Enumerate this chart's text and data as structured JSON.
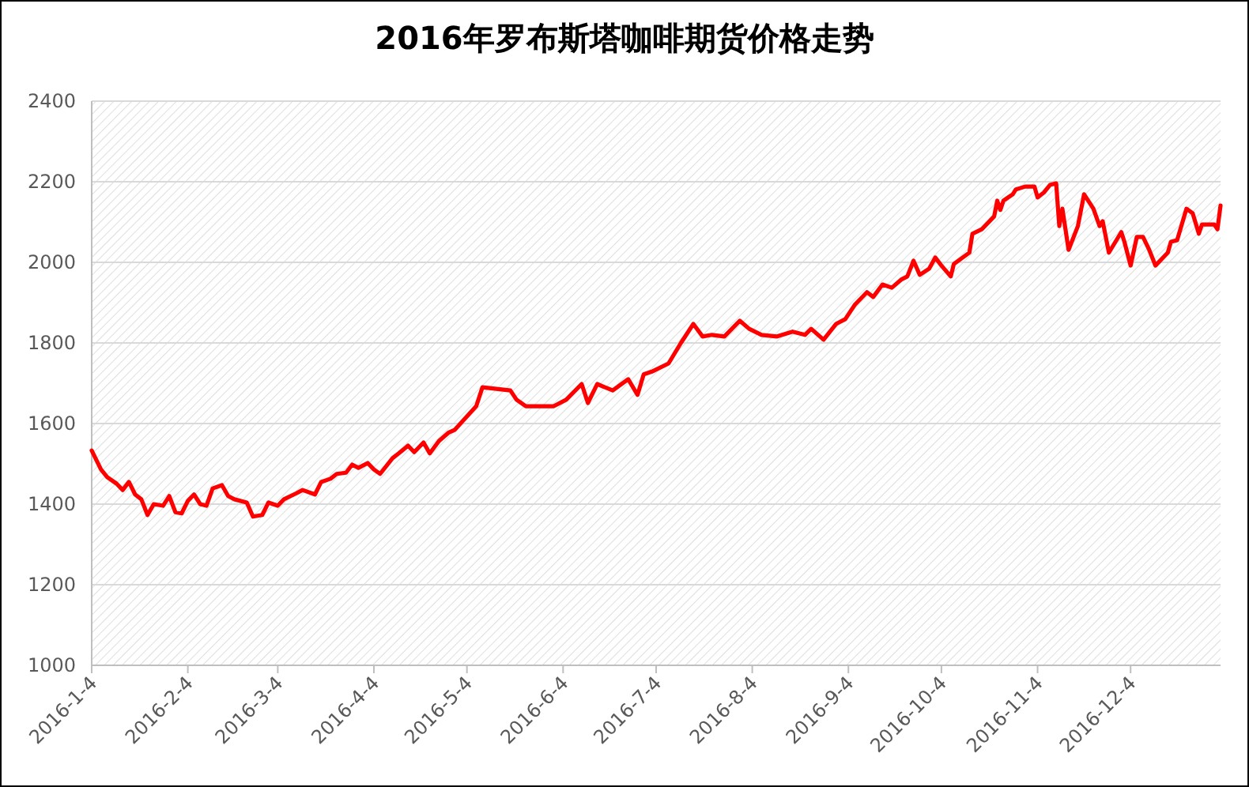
{
  "chart_data": {
    "type": "line",
    "title": "2016年罗布斯塔咖啡期货价格走势",
    "x": [
      "2016-01-04",
      "2016-01-07",
      "2016-01-09",
      "2016-01-12",
      "2016-01-14",
      "2016-01-16",
      "2016-01-18",
      "2016-01-20",
      "2016-01-22",
      "2016-01-24",
      "2016-01-27",
      "2016-01-29",
      "2016-01-31",
      "2016-02-02",
      "2016-02-04",
      "2016-02-06",
      "2016-02-08",
      "2016-02-10",
      "2016-02-12",
      "2016-02-15",
      "2016-02-17",
      "2016-02-19",
      "2016-02-23",
      "2016-02-25",
      "2016-02-28",
      "2016-03-01",
      "2016-03-04",
      "2016-03-06",
      "2016-03-10",
      "2016-03-12",
      "2016-03-16",
      "2016-03-18",
      "2016-03-21",
      "2016-03-23",
      "2016-03-26",
      "2016-03-28",
      "2016-03-30",
      "2016-04-02",
      "2016-04-04",
      "2016-04-06",
      "2016-04-10",
      "2016-04-12",
      "2016-04-15",
      "2016-04-17",
      "2016-04-20",
      "2016-04-22",
      "2016-04-25",
      "2016-04-28",
      "2016-04-30",
      "2016-05-07",
      "2016-05-09",
      "2016-05-18",
      "2016-05-20",
      "2016-05-23",
      "2016-06-01",
      "2016-06-05",
      "2016-06-10",
      "2016-06-12",
      "2016-06-15",
      "2016-06-20",
      "2016-06-25",
      "2016-06-28",
      "2016-06-30",
      "2016-07-03",
      "2016-07-08",
      "2016-07-12",
      "2016-07-16",
      "2016-07-19",
      "2016-07-22",
      "2016-07-26",
      "2016-07-31",
      "2016-08-03",
      "2016-08-07",
      "2016-08-12",
      "2016-08-17",
      "2016-08-21",
      "2016-08-23",
      "2016-08-27",
      "2016-08-31",
      "2016-09-03",
      "2016-09-06",
      "2016-09-10",
      "2016-09-12",
      "2016-09-15",
      "2016-09-18",
      "2016-09-21",
      "2016-09-23",
      "2016-09-25",
      "2016-09-27",
      "2016-09-30",
      "2016-10-02",
      "2016-10-04",
      "2016-10-07",
      "2016-10-08",
      "2016-10-13",
      "2016-10-14",
      "2016-10-17",
      "2016-10-21",
      "2016-10-22",
      "2016-10-23",
      "2016-10-24",
      "2016-10-27",
      "2016-10-28",
      "2016-10-31",
      "2016-11-03",
      "2016-11-04",
      "2016-11-06",
      "2016-11-08",
      "2016-11-10",
      "2016-11-11",
      "2016-11-12",
      "2016-11-14",
      "2016-11-17",
      "2016-11-19",
      "2016-11-22",
      "2016-11-24",
      "2016-11-25",
      "2016-11-27",
      "2016-12-01",
      "2016-12-02",
      "2016-12-04",
      "2016-12-06",
      "2016-12-08",
      "2016-12-10",
      "2016-12-12",
      "2016-12-16",
      "2016-12-17",
      "2016-12-19",
      "2016-12-22",
      "2016-12-24",
      "2016-12-26",
      "2016-12-27",
      "2016-12-31",
      "2017-01-01",
      "2017-01-02"
    ],
    "series": [
      {
        "color": "#ff0000",
        "values": [
          1533,
          1486,
          1467,
          1451,
          1435,
          1455,
          1424,
          1412,
          1373,
          1400,
          1396,
          1420,
          1380,
          1377,
          1408,
          1424,
          1400,
          1396,
          1439,
          1447,
          1420,
          1412,
          1404,
          1369,
          1373,
          1404,
          1396,
          1412,
          1427,
          1435,
          1424,
          1455,
          1463,
          1475,
          1478,
          1498,
          1490,
          1502,
          1486,
          1475,
          1514,
          1526,
          1545,
          1529,
          1553,
          1526,
          1557,
          1577,
          1584,
          1643,
          1690,
          1682,
          1659,
          1643,
          1643,
          1659,
          1698,
          1651,
          1698,
          1682,
          1710,
          1671,
          1722,
          1730,
          1749,
          1800,
          1847,
          1816,
          1820,
          1816,
          1855,
          1835,
          1820,
          1816,
          1828,
          1820,
          1835,
          1808,
          1847,
          1859,
          1894,
          1926,
          1914,
          1945,
          1937,
          1957,
          1965,
          2004,
          1969,
          1984,
          2012,
          1992,
          1965,
          1996,
          2024,
          2071,
          2082,
          2114,
          2153,
          2130,
          2153,
          2169,
          2181,
          2188,
          2188,
          2161,
          2173,
          2192,
          2196,
          2090,
          2133,
          2031,
          2090,
          2169,
          2133,
          2090,
          2102,
          2024,
          2075,
          2051,
          1992,
          2063,
          2063,
          2031,
          1992,
          2024,
          2051,
          2055,
          2133,
          2122,
          2071,
          2094,
          2094,
          2082,
          2141
        ]
      }
    ],
    "xlim": [
      "2016-01-04",
      "2017-01-02"
    ],
    "xticks": [
      {
        "value": "2016-01-04",
        "label": "2016-1-4"
      },
      {
        "value": "2016-02-04",
        "label": "2016-2-4"
      },
      {
        "value": "2016-03-04",
        "label": "2016-3-4"
      },
      {
        "value": "2016-04-04",
        "label": "2016-4-4"
      },
      {
        "value": "2016-05-04",
        "label": "2016-5-4"
      },
      {
        "value": "2016-06-04",
        "label": "2016-6-4"
      },
      {
        "value": "2016-07-04",
        "label": "2016-7-4"
      },
      {
        "value": "2016-08-04",
        "label": "2016-8-4"
      },
      {
        "value": "2016-09-04",
        "label": "2016-9-4"
      },
      {
        "value": "2016-10-04",
        "label": "2016-10-4"
      },
      {
        "value": "2016-11-04",
        "label": "2016-11-4"
      },
      {
        "value": "2016-12-04",
        "label": "2016-12-4"
      }
    ],
    "ylim": [
      1000,
      2400
    ],
    "yticks": [
      1000,
      1200,
      1400,
      1600,
      1800,
      2000,
      2200,
      2400
    ],
    "grid": "y",
    "marker": "none",
    "line_style": "solid"
  }
}
